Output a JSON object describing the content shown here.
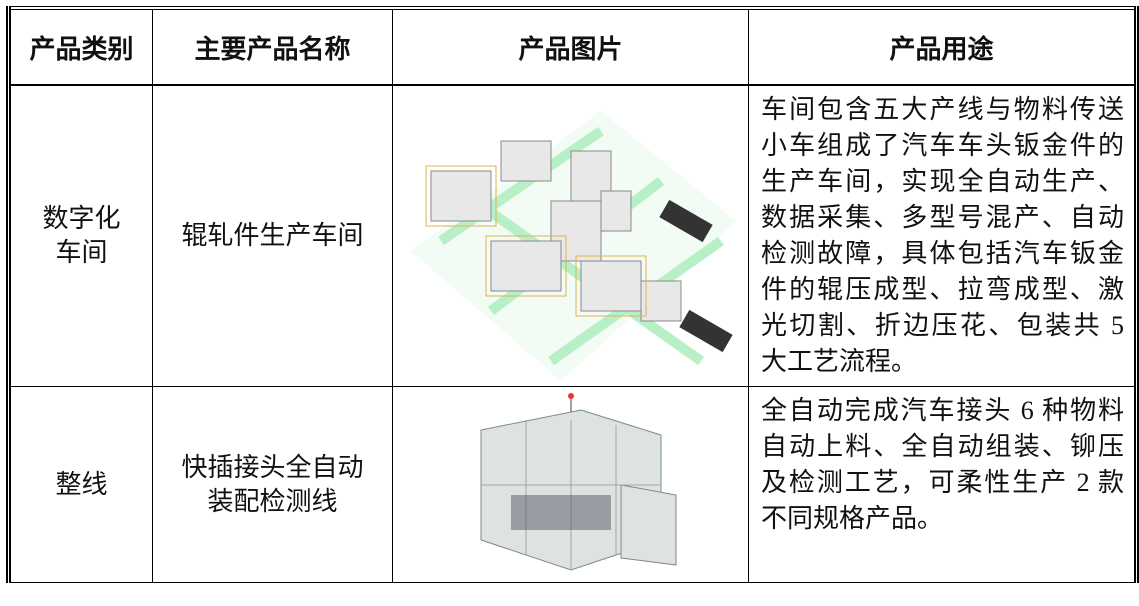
{
  "table": {
    "header": [
      "产品类别",
      "主要产品名称",
      "产品图片",
      "产品用途"
    ],
    "rows": [
      {
        "category": [
          "数字化",
          "车间"
        ],
        "name": [
          "辊轧件生产车间"
        ],
        "usage": "车间包含五大产线与物料传送小车组成了汽车车头钣金件的生产车间，实现全自动生产、数据采集、多型号混产、自动检测故障，具体包括汽车钣金件的辊压成型、拉弯成型、激光切割、折边压花、包装共 5 大工艺流程。"
      },
      {
        "category": [
          "整线"
        ],
        "name": [
          "快插接头全自动",
          "装配检测线"
        ],
        "usage": "全自动完成汽车接头 6 种物料自动上料、全自动组装、铆压及检测工艺，可柔性生产 2 款不同规格产品。"
      }
    ]
  }
}
